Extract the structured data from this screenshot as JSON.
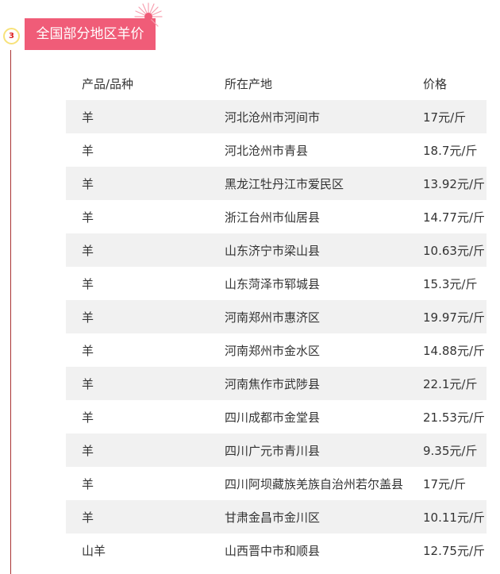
{
  "section": {
    "number": "3",
    "title": "全国部分地区羊价"
  },
  "table": {
    "headers": [
      "产品/品种",
      "所在产地",
      "价格"
    ],
    "rows": [
      [
        "羊",
        "河北沧州市河间市",
        "17元/斤"
      ],
      [
        "羊",
        "河北沧州市青县",
        "18.7元/斤"
      ],
      [
        "羊",
        "黑龙江牡丹江市爱民区",
        "13.92元/斤"
      ],
      [
        "羊",
        "浙江台州市仙居县",
        "14.77元/斤"
      ],
      [
        "羊",
        "山东济宁市梁山县",
        "10.63元/斤"
      ],
      [
        "羊",
        "山东菏泽市郓城县",
        "15.3元/斤"
      ],
      [
        "羊",
        "河南郑州市惠济区",
        "19.97元/斤"
      ],
      [
        "羊",
        "河南郑州市金水区",
        "14.88元/斤"
      ],
      [
        "羊",
        "河南焦作市武陟县",
        "22.1元/斤"
      ],
      [
        "羊",
        "四川成都市金堂县",
        "21.53元/斤"
      ],
      [
        "羊",
        "四川广元市青川县",
        "9.35元/斤"
      ],
      [
        "羊",
        "四川阿坝藏族羌族自治州若尔盖县",
        "17元/斤"
      ],
      [
        "羊",
        "甘肃金昌市金川区",
        "10.11元/斤"
      ],
      [
        "山羊",
        "山西晋中市和顺县",
        "12.75元/斤"
      ]
    ]
  },
  "colors": {
    "accent": "#f05c78",
    "badge_border": "#f7e27a",
    "row_shade": "#f1f1f1"
  }
}
